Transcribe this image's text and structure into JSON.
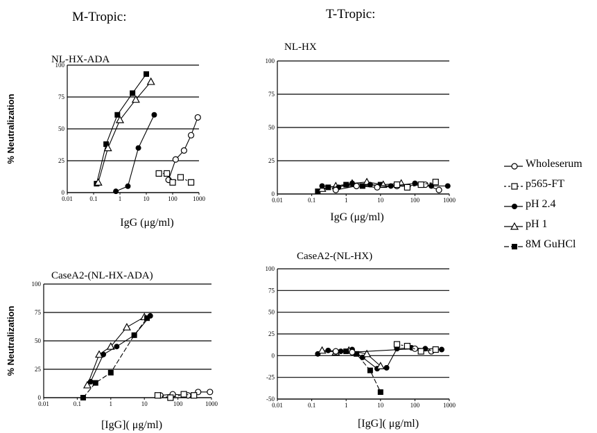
{
  "headings": {
    "m_tropic": "M-Tropic:",
    "t_tropic": "T-Tropic:"
  },
  "legend": [
    {
      "label": "Wholeserum",
      "marker": "circle-open",
      "dash": ""
    },
    {
      "label": "p565-FT",
      "marker": "square-open",
      "dash": "3,3"
    },
    {
      "label": "pH 2.4",
      "marker": "circle",
      "dash": ""
    },
    {
      "label": "pH 1",
      "marker": "triangle",
      "dash": ""
    },
    {
      "label": "8M GuHCl",
      "marker": "square",
      "dash": "7,3"
    }
  ],
  "chart_data": [
    {
      "type": "line",
      "title": "NL-HX-ADA",
      "xlabel": "IgG (μg/ml)",
      "ylabel": "% Neutralization",
      "xscale": "log",
      "xlim": [
        0.01,
        1000
      ],
      "xticks": [
        "0.01",
        "0.1",
        "1",
        "10",
        "100",
        "1000"
      ],
      "ylim": [
        0,
        100
      ],
      "yticks": [
        "0",
        "25",
        "50",
        "75",
        "100"
      ],
      "grid": true,
      "series": [
        {
          "name": "8M GuHCl",
          "marker": "square",
          "dash": "",
          "points": [
            [
              0.13,
              7
            ],
            [
              0.3,
              38
            ],
            [
              0.8,
              61
            ],
            [
              3,
              78
            ],
            [
              10,
              93
            ]
          ]
        },
        {
          "name": "pH 1",
          "marker": "triangle",
          "dash": "",
          "points": [
            [
              0.15,
              8
            ],
            [
              0.35,
              35
            ],
            [
              1,
              57
            ],
            [
              4,
              73
            ],
            [
              15,
              87
            ]
          ]
        },
        {
          "name": "pH 2.4",
          "marker": "circle",
          "dash": "",
          "points": [
            [
              0.7,
              1
            ],
            [
              2,
              5
            ],
            [
              5,
              35
            ],
            [
              20,
              61
            ]
          ]
        },
        {
          "name": "Wholeserum",
          "marker": "circle-open",
          "dash": "",
          "points": [
            [
              70,
              10
            ],
            [
              130,
              26
            ],
            [
              270,
              33
            ],
            [
              500,
              45
            ],
            [
              900,
              59
            ]
          ]
        },
        {
          "name": "p565-FT",
          "marker": "square-open",
          "dash": "3,3",
          "points": [
            [
              30,
              15
            ],
            [
              60,
              15
            ],
            [
              100,
              8
            ],
            [
              200,
              12
            ],
            [
              500,
              8
            ]
          ]
        }
      ]
    },
    {
      "type": "line",
      "title": "NL-HX",
      "xlabel": "IgG (μg/ml)",
      "ylabel": "",
      "xscale": "log",
      "xlim": [
        0.01,
        1000
      ],
      "xticks": [
        "0.01",
        "0.1",
        "1",
        "10",
        "100",
        "1000"
      ],
      "ylim": [
        0,
        100
      ],
      "yticks": [
        "0",
        "25",
        "50",
        "75",
        "100"
      ],
      "grid": true,
      "series": [
        {
          "name": "8M GuHCl",
          "marker": "square",
          "dash": "",
          "points": [
            [
              0.15,
              2
            ],
            [
              0.3,
              5
            ],
            [
              1,
              7
            ],
            [
              3,
              6
            ],
            [
              10,
              7
            ]
          ]
        },
        {
          "name": "pH 1",
          "marker": "triangle",
          "dash": "",
          "points": [
            [
              0.2,
              4
            ],
            [
              0.5,
              6
            ],
            [
              1.5,
              8
            ],
            [
              4,
              9
            ],
            [
              12,
              7
            ],
            [
              40,
              8
            ]
          ]
        },
        {
          "name": "pH 2.4",
          "marker": "circle",
          "dash": "",
          "points": [
            [
              0.2,
              6
            ],
            [
              0.6,
              5
            ],
            [
              1.5,
              8
            ],
            [
              5,
              7
            ],
            [
              20,
              6
            ],
            [
              100,
              8
            ],
            [
              300,
              6
            ],
            [
              900,
              6
            ]
          ]
        },
        {
          "name": "Wholeserum",
          "marker": "circle-open",
          "dash": "",
          "points": [
            [
              0.5,
              3
            ],
            [
              2,
              6
            ],
            [
              8,
              5
            ],
            [
              30,
              6
            ],
            [
              200,
              7
            ],
            [
              500,
              3
            ]
          ]
        },
        {
          "name": "p565-FT",
          "marker": "square-open",
          "dash": "3,3",
          "points": [
            [
              30,
              7
            ],
            [
              60,
              5
            ],
            [
              150,
              7
            ],
            [
              400,
              9
            ]
          ]
        }
      ]
    },
    {
      "type": "line",
      "title": "CaseA2-(NL-HX-ADA)",
      "xlabel": "[IgG]( μg/ml)",
      "ylabel": "% Neutralization",
      "xscale": "log",
      "xlim": [
        0.01,
        1000
      ],
      "xticks": [
        "0.01",
        "0.1",
        "1",
        "10",
        "100",
        "1000"
      ],
      "ylim": [
        0,
        100
      ],
      "yticks": [
        "0",
        "25",
        "50",
        "75",
        "100"
      ],
      "grid": true,
      "series": [
        {
          "name": "pH 1",
          "marker": "triangle",
          "dash": "",
          "points": [
            [
              0.2,
              11
            ],
            [
              0.45,
              38
            ],
            [
              1,
              45
            ],
            [
              3,
              62
            ],
            [
              10,
              71
            ]
          ]
        },
        {
          "name": "pH 2.4",
          "marker": "circle",
          "dash": "",
          "points": [
            [
              0.25,
              14
            ],
            [
              0.6,
              38
            ],
            [
              1.5,
              45
            ],
            [
              5,
              55
            ],
            [
              15,
              72
            ]
          ]
        },
        {
          "name": "8M GuHCl",
          "marker": "square",
          "dash": "7,3",
          "points": [
            [
              0.15,
              0
            ],
            [
              0.35,
              13
            ],
            [
              1,
              22
            ],
            [
              5,
              55
            ],
            [
              12,
              70
            ]
          ]
        },
        {
          "name": "Wholeserum",
          "marker": "circle-open",
          "dash": "",
          "points": [
            [
              30,
              2
            ],
            [
              70,
              3
            ],
            [
              200,
              2
            ],
            [
              400,
              5
            ],
            [
              900,
              5
            ]
          ]
        },
        {
          "name": "p565-FT",
          "marker": "square-open",
          "dash": "3,3",
          "points": [
            [
              25,
              2
            ],
            [
              60,
              0
            ],
            [
              150,
              3
            ],
            [
              300,
              2
            ]
          ]
        }
      ]
    },
    {
      "type": "line",
      "title": "CaseA2-(NL-HX)",
      "xlabel": "[IgG]( μg/ml)",
      "ylabel": "",
      "xscale": "log",
      "xlim": [
        0.01,
        1000
      ],
      "xticks": [
        "0.01",
        "0.1",
        "1",
        "10",
        "100",
        "1000"
      ],
      "ylim": [
        -50,
        100
      ],
      "yticks": [
        "-50",
        "-25",
        "0",
        "25",
        "50",
        "75",
        "100"
      ],
      "grid": true,
      "series": [
        {
          "name": "pH 2.4",
          "marker": "circle",
          "dash": "",
          "points": [
            [
              0.15,
              2
            ],
            [
              0.3,
              6
            ],
            [
              0.7,
              5
            ],
            [
              1.5,
              7
            ],
            [
              3,
              -2
            ],
            [
              8,
              -15
            ],
            [
              15,
              -14
            ],
            [
              30,
              8
            ],
            [
              80,
              9
            ],
            [
              200,
              8
            ],
            [
              600,
              7
            ]
          ]
        },
        {
          "name": "pH 1",
          "marker": "triangle",
          "dash": "",
          "points": [
            [
              0.2,
              6
            ],
            [
              0.5,
              4
            ],
            [
              1.2,
              6
            ],
            [
              4,
              2
            ],
            [
              10,
              -12
            ]
          ]
        },
        {
          "name": "8M GuHCl",
          "marker": "square",
          "dash": "7,3",
          "points": [
            [
              1,
              5
            ],
            [
              2,
              2
            ],
            [
              5,
              -17
            ],
            [
              10,
              -42
            ]
          ]
        },
        {
          "name": "Wholeserum",
          "marker": "circle-open",
          "dash": "",
          "points": [
            [
              0.5,
              5
            ],
            [
              1.5,
              4
            ],
            [
              100,
              8
            ],
            [
              300,
              5
            ]
          ]
        },
        {
          "name": "p565-FT",
          "marker": "square-open",
          "dash": "3,3",
          "points": [
            [
              30,
              13
            ],
            [
              60,
              11
            ],
            [
              150,
              5
            ],
            [
              400,
              7
            ]
          ]
        }
      ]
    }
  ]
}
